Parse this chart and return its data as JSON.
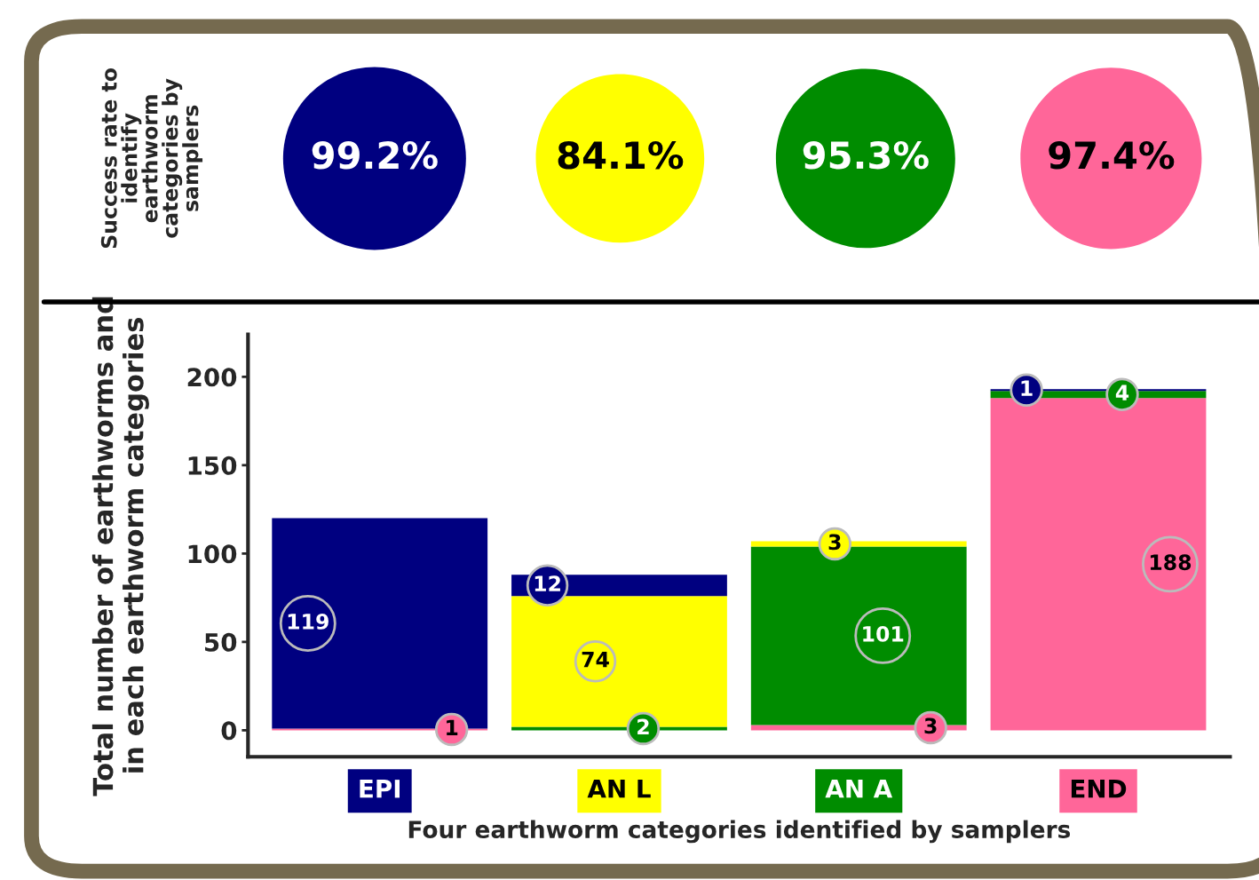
{
  "chart_data": [
    {
      "type": "other",
      "ylabel": "Success rate to\nidentify\nearthworm\ncategories by\nsamplers",
      "categories": [
        null,
        null,
        null,
        null
      ],
      "values": [
        99.2,
        84.1,
        95.3,
        97.4
      ],
      "value_labels": [
        "99.2%",
        "84.1%",
        "95.3%",
        "97.4%"
      ],
      "colors": [
        "#000080",
        "#ffff00",
        "#008c00",
        "#ff6699"
      ]
    },
    {
      "type": "bar",
      "stacked": true,
      "ylabel": "Total number of earthworms and\nin each earthworm categories",
      "xlabel": "Four earthworm categories identified by samplers",
      "categories": [
        "EPI",
        "AN L",
        "AN A",
        "END"
      ],
      "series": [
        {
          "color": "#ff6699",
          "values": [
            1,
            null,
            3,
            188
          ]
        },
        {
          "color": "#008c00",
          "values": [
            null,
            2,
            101,
            4
          ]
        },
        {
          "color": "#ffff00",
          "values": [
            null,
            74,
            3,
            null
          ]
        },
        {
          "color": "#000080",
          "values": [
            119,
            12,
            null,
            1
          ]
        }
      ],
      "ylim": [
        -15,
        224
      ],
      "yticks": [
        0,
        50,
        100,
        150,
        200
      ],
      "data_labels": true,
      "grid": false
    }
  ]
}
